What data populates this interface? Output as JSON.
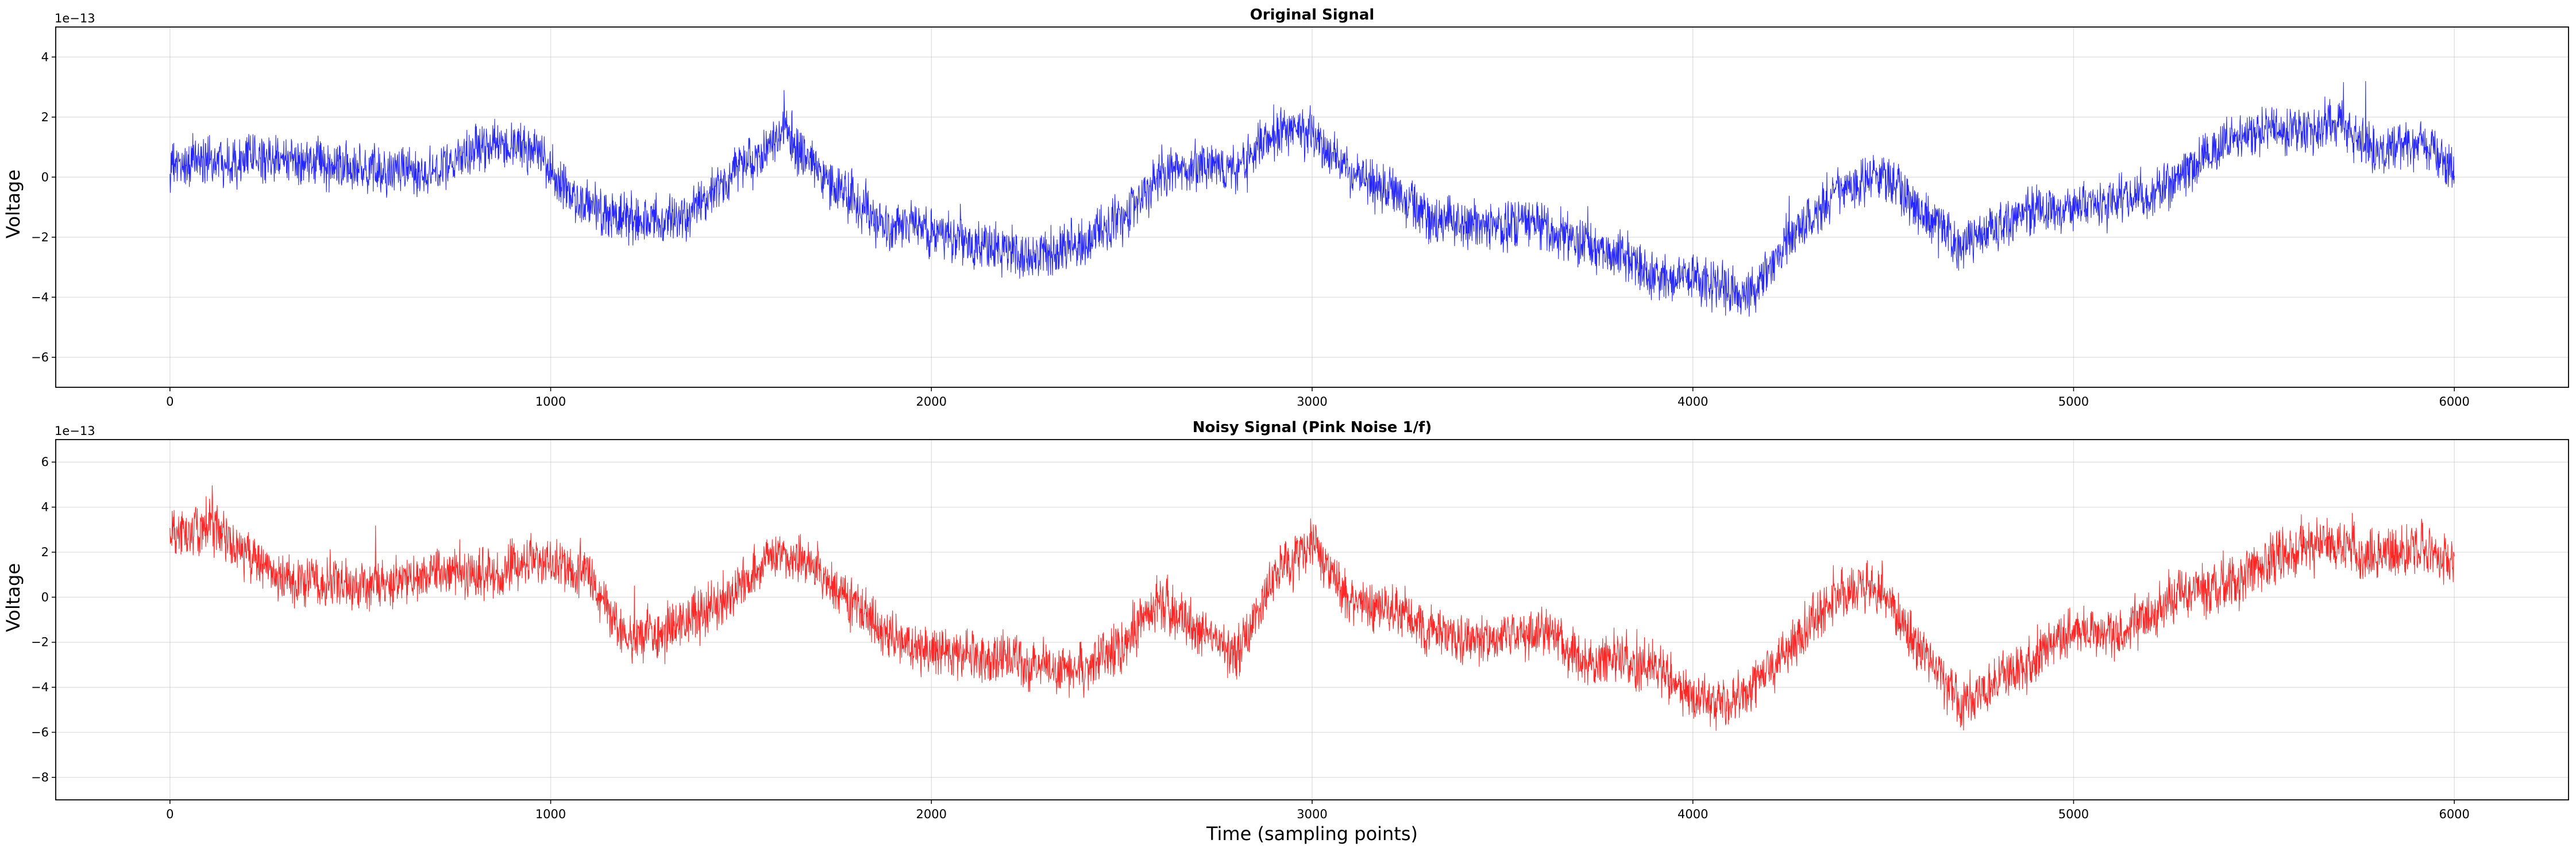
{
  "chart_data": [
    {
      "type": "line",
      "title": "Original Signal",
      "xlabel": "",
      "ylabel": "Voltage",
      "y_offset_label": "1e−13",
      "xlim": [
        -300,
        6300
      ],
      "ylim": [
        -7,
        5
      ],
      "x_ticks": [
        0,
        1000,
        2000,
        3000,
        4000,
        5000,
        6000
      ],
      "x_tick_labels": [
        "0",
        "1000",
        "2000",
        "3000",
        "4000",
        "5000",
        "6000"
      ],
      "y_ticks": [
        4,
        2,
        0,
        -2,
        -4,
        -6
      ],
      "y_tick_labels": [
        "4",
        "2",
        "0",
        "−2",
        "−4",
        "−6"
      ],
      "grid": true,
      "series": [
        {
          "color": "#0000ff",
          "n_points": 6000,
          "x_start": 0,
          "x_end": 6000,
          "trend_x": [
            0,
            100,
            300,
            500,
            700,
            850,
            950,
            1050,
            1150,
            1250,
            1350,
            1450,
            1550,
            1620,
            1700,
            1800,
            1900,
            2000,
            2100,
            2250,
            2400,
            2500,
            2600,
            2700,
            2800,
            2900,
            2950,
            3000,
            3100,
            3200,
            3300,
            3400,
            3500,
            3600,
            3700,
            3800,
            3900,
            4000,
            4100,
            4150,
            4250,
            4400,
            4500,
            4600,
            4700,
            4800,
            4900,
            5000,
            5100,
            5200,
            5300,
            5400,
            5500,
            5600,
            5700,
            5800,
            5900,
            6000
          ],
          "trend_y": [
            0.3,
            0.6,
            0.6,
            0.2,
            0.2,
            1.2,
            1.0,
            -0.6,
            -1.3,
            -1.5,
            -1.3,
            -0.3,
            0.8,
            1.5,
            0.2,
            -0.8,
            -1.6,
            -1.8,
            -2.2,
            -2.6,
            -2.2,
            -1.4,
            0.0,
            0.4,
            0.2,
            1.5,
            1.6,
            1.4,
            0.2,
            -0.5,
            -1.3,
            -1.6,
            -1.6,
            -1.5,
            -2.2,
            -2.5,
            -3.3,
            -3.4,
            -3.8,
            -3.9,
            -2.1,
            -0.3,
            0.1,
            -1.2,
            -2.3,
            -1.6,
            -1.2,
            -1.0,
            -0.8,
            -0.6,
            0.2,
            1.2,
            1.6,
            1.4,
            1.8,
            0.8,
            1.2,
            0.3
          ],
          "noise_amplitude": 0.75,
          "y_min": -6.6,
          "y_max": 5.0
        }
      ]
    },
    {
      "type": "line",
      "title": "Noisy Signal (Pink Noise 1/f)",
      "xlabel": "Time (sampling points)",
      "ylabel": "Voltage",
      "y_offset_label": "1e−13",
      "xlim": [
        -300,
        6300
      ],
      "ylim": [
        -9,
        7
      ],
      "x_ticks": [
        0,
        1000,
        2000,
        3000,
        4000,
        5000,
        6000
      ],
      "x_tick_labels": [
        "0",
        "1000",
        "2000",
        "3000",
        "4000",
        "5000",
        "6000"
      ],
      "y_ticks": [
        6,
        4,
        2,
        0,
        -2,
        -4,
        -6,
        -8
      ],
      "y_tick_labels": [
        "6",
        "4",
        "2",
        "0",
        "−2",
        "−4",
        "−6",
        "−8"
      ],
      "grid": true,
      "series": [
        {
          "color": "#ff0000",
          "n_points": 6000,
          "x_start": 0,
          "x_end": 6000,
          "trend_x": [
            0,
            100,
            300,
            500,
            700,
            850,
            950,
            1100,
            1200,
            1300,
            1400,
            1500,
            1600,
            1700,
            1800,
            1900,
            2000,
            2100,
            2250,
            2400,
            2500,
            2600,
            2700,
            2800,
            2900,
            3000,
            3100,
            3200,
            3300,
            3400,
            3500,
            3600,
            3700,
            3800,
            3900,
            4000,
            4100,
            4200,
            4300,
            4400,
            4500,
            4600,
            4700,
            4800,
            4900,
            5000,
            5100,
            5200,
            5300,
            5400,
            5500,
            5600,
            5700,
            5800,
            5900,
            6000
          ],
          "trend_y": [
            2.5,
            3.2,
            0.8,
            0.5,
            1.2,
            1.0,
            1.6,
            1.0,
            -2.0,
            -1.5,
            -0.8,
            0.6,
            2.0,
            1.2,
            -0.5,
            -1.8,
            -2.6,
            -2.6,
            -3.0,
            -3.2,
            -2.0,
            -0.2,
            -1.5,
            -2.7,
            1.0,
            2.5,
            -0.4,
            -0.4,
            -1.6,
            -1.8,
            -1.7,
            -1.4,
            -2.7,
            -2.8,
            -3.2,
            -4.4,
            -4.8,
            -3.2,
            -1.4,
            0.3,
            0.3,
            -2.4,
            -4.8,
            -3.7,
            -2.7,
            -1.4,
            -1.6,
            -0.8,
            0.4,
            0.4,
            1.5,
            2.3,
            2.2,
            1.8,
            2.3,
            1.5
          ],
          "noise_amplitude": 1.05,
          "y_min": -8.4,
          "y_max": 7.0
        }
      ]
    }
  ]
}
